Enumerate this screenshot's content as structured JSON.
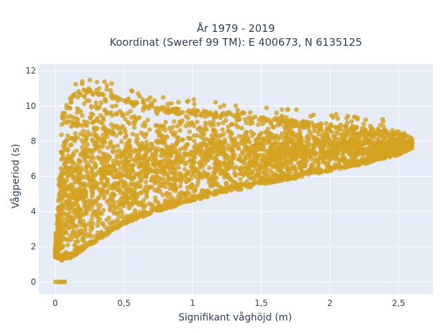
{
  "chart_data": {
    "type": "scatter",
    "title_line1": "År 1979 - 2019",
    "title_line2": "Koordinat (Sweref 99 TM): E 400673, N 6135125",
    "xlabel": "Signifikant våghöjd (m)",
    "ylabel": "Vågperiod (s)",
    "xlim": [
      -0.12,
      2.75
    ],
    "ylim": [
      -0.7,
      12.4
    ],
    "x_ticks": [
      0,
      0.5,
      1,
      1.5,
      2,
      2.5
    ],
    "x_tick_labels": [
      "0",
      "0,5",
      "1",
      "1,5",
      "2",
      "2,5"
    ],
    "y_ticks": [
      0,
      2,
      4,
      6,
      8,
      10,
      12
    ],
    "y_tick_labels": [
      "0",
      "2",
      "4",
      "6",
      "8",
      "10",
      "12"
    ],
    "grid": true,
    "marker_color": "#d4a321",
    "plot_background": "#e5ecf6",
    "series_envelope": {
      "x": [
        0.0,
        0.05,
        0.1,
        0.2,
        0.3,
        0.4,
        0.5,
        0.75,
        1.0,
        1.25,
        1.5,
        1.75,
        2.0,
        2.25,
        2.5,
        2.6
      ],
      "y_min": [
        1.4,
        1.2,
        1.3,
        1.8,
        2.3,
        2.8,
        3.3,
        4.0,
        4.6,
        5.1,
        5.5,
        5.9,
        6.3,
        6.7,
        7.2,
        7.6
      ],
      "y_max": [
        2.0,
        9.5,
        10.5,
        11.0,
        11.0,
        10.8,
        10.5,
        10.0,
        9.8,
        9.6,
        9.4,
        9.2,
        9.0,
        8.8,
        8.6,
        8.3
      ]
    },
    "zero_points": {
      "x": [
        0.0,
        0.02,
        0.03,
        0.04,
        0.05,
        0.06,
        0.07
      ],
      "y": [
        0,
        0,
        0,
        0,
        0,
        0,
        0
      ]
    }
  }
}
